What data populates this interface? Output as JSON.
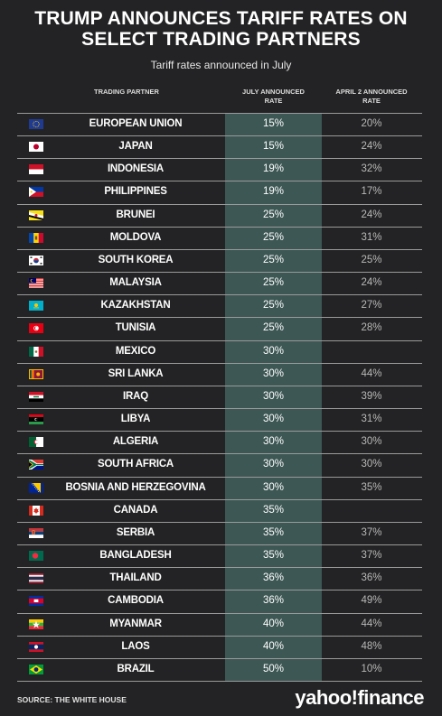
{
  "title_line1": "TRUMP ANNOUNCES TARIFF RATES ON",
  "title_line2": "SELECT TRADING PARTNERS",
  "subtitle": "Tariff rates announced in July",
  "source": "SOURCE: THE WHITE HOUSE",
  "logo": {
    "brand": "yahoo",
    "slash": "!",
    "product": "finance"
  },
  "colors": {
    "background": "#232325",
    "july_column": "#3d5754",
    "rule": "#9a9a9a"
  },
  "chart_data": {
    "type": "table",
    "columns": {
      "partner_header": "TRADING PARTNER",
      "july_header_line1": "JULY ANNOUNCED",
      "july_header_line2": "RATE",
      "april_header_line1": "APRIL 2 ANNOUNCED",
      "april_header_line2": "RATE"
    },
    "rows": [
      {
        "country": "EUROPEAN UNION",
        "flag": "eu-flag",
        "july": "15%",
        "april": "20%"
      },
      {
        "country": "JAPAN",
        "flag": "japan-flag",
        "july": "15%",
        "april": "24%"
      },
      {
        "country": "INDONESIA",
        "flag": "indonesia-flag",
        "july": "19%",
        "april": "32%"
      },
      {
        "country": "PHILIPPINES",
        "flag": "philippines-flag",
        "july": "19%",
        "april": "17%"
      },
      {
        "country": "BRUNEI",
        "flag": "brunei-flag",
        "july": "25%",
        "april": "24%"
      },
      {
        "country": "MOLDOVA",
        "flag": "moldova-flag",
        "july": "25%",
        "april": "31%"
      },
      {
        "country": "SOUTH KOREA",
        "flag": "south-korea-flag",
        "july": "25%",
        "april": "25%"
      },
      {
        "country": "MALAYSIA",
        "flag": "malaysia-flag",
        "july": "25%",
        "april": "24%"
      },
      {
        "country": "KAZAKHSTAN",
        "flag": "kazakhstan-flag",
        "july": "25%",
        "april": "27%"
      },
      {
        "country": "TUNISIA",
        "flag": "tunisia-flag",
        "july": "25%",
        "april": "28%"
      },
      {
        "country": "MEXICO",
        "flag": "mexico-flag",
        "july": "30%",
        "april": ""
      },
      {
        "country": "SRI LANKA",
        "flag": "sri-lanka-flag",
        "july": "30%",
        "april": "44%"
      },
      {
        "country": "IRAQ",
        "flag": "iraq-flag",
        "july": "30%",
        "april": "39%"
      },
      {
        "country": "LIBYA",
        "flag": "libya-flag",
        "july": "30%",
        "april": "31%"
      },
      {
        "country": "ALGERIA",
        "flag": "algeria-flag",
        "july": "30%",
        "april": "30%"
      },
      {
        "country": "SOUTH AFRICA",
        "flag": "south-africa-flag",
        "july": "30%",
        "april": "30%"
      },
      {
        "country": "BOSNIA AND HERZEGOVINA",
        "flag": "bosnia-flag",
        "july": "30%",
        "april": "35%"
      },
      {
        "country": "CANADA",
        "flag": "canada-flag",
        "july": "35%",
        "april": ""
      },
      {
        "country": "SERBIA",
        "flag": "serbia-flag",
        "july": "35%",
        "april": "37%"
      },
      {
        "country": "BANGLADESH",
        "flag": "bangladesh-flag",
        "july": "35%",
        "april": "37%"
      },
      {
        "country": "THAILAND",
        "flag": "thailand-flag",
        "july": "36%",
        "april": "36%"
      },
      {
        "country": "CAMBODIA",
        "flag": "cambodia-flag",
        "july": "36%",
        "april": "49%"
      },
      {
        "country": "MYANMAR",
        "flag": "myanmar-flag",
        "july": "40%",
        "april": "44%"
      },
      {
        "country": "LAOS",
        "flag": "laos-flag",
        "july": "40%",
        "april": "48%"
      },
      {
        "country": "BRAZIL",
        "flag": "brazil-flag",
        "july": "50%",
        "april": "10%"
      }
    ]
  }
}
